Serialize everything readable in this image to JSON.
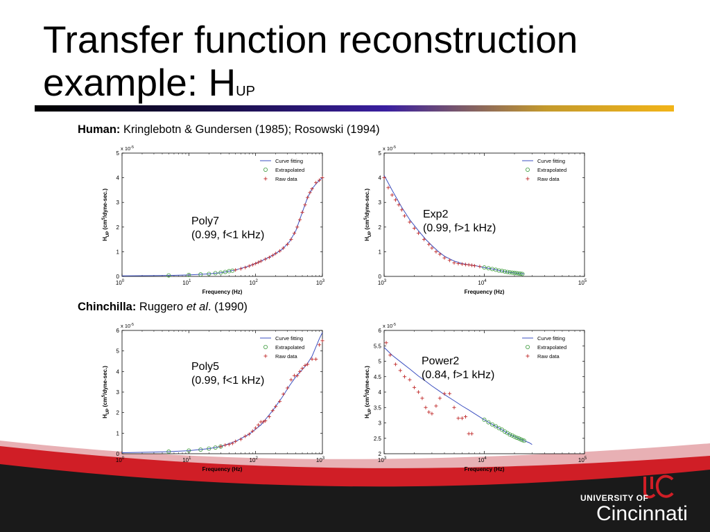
{
  "slide": {
    "title_main": "Transfer function reconstruction example: H",
    "title_sub": "UP",
    "human_caption": {
      "bold": "Human:",
      "rest": " Kringlebotn & Gundersen (1985);  Rosowski (1994)"
    },
    "chinchilla_caption": {
      "bold": "Chinchilla:",
      "pre": " Ruggero ",
      "italic": "et al",
      "post": ". (1990)"
    },
    "logo": {
      "line1": "UNIVERSITY OF",
      "line2": "Cincinnati"
    }
  },
  "colors": {
    "fit": "#3b4fc0",
    "extrap": "#3c9a3c",
    "raw": "#c02a2a",
    "rule_end": "#f2b418",
    "footer": "#d01e26"
  },
  "chart_data": [
    {
      "id": "c1",
      "type": "scatter",
      "xscale": "log",
      "xlim": [
        1,
        1000
      ],
      "ylim": [
        0,
        5
      ],
      "yticks": [
        0,
        1,
        2,
        3,
        4,
        5
      ],
      "xticks": [
        {
          "base": "10",
          "exp": "0",
          "v": 1
        },
        {
          "base": "10",
          "exp": "1",
          "v": 10
        },
        {
          "base": "10",
          "exp": "2",
          "v": 100
        },
        {
          "base": "10",
          "exp": "3",
          "v": 1000
        }
      ],
      "multiplier": {
        "base": "x 10",
        "exp": "-5"
      },
      "xlabel": "Frequency (Hz)",
      "ylabel": {
        "h": "H",
        "sub": "UP",
        "mid": " (cm",
        "sup": "5",
        "end": "/dyne-sec.)"
      },
      "legend": [
        "Curve fitting",
        "Extrapolated",
        "Raw data"
      ],
      "annotation": [
        "Poly7",
        "(0.99, f<1 kHz)"
      ],
      "fit": [
        [
          1,
          0.02
        ],
        [
          3,
          0.03
        ],
        [
          5,
          0.04
        ],
        [
          10,
          0.06
        ],
        [
          20,
          0.1
        ],
        [
          30,
          0.15
        ],
        [
          50,
          0.26
        ],
        [
          80,
          0.42
        ],
        [
          120,
          0.62
        ],
        [
          180,
          0.85
        ],
        [
          250,
          1.1
        ],
        [
          320,
          1.4
        ],
        [
          400,
          1.85
        ],
        [
          500,
          2.6
        ],
        [
          600,
          3.2
        ],
        [
          700,
          3.55
        ],
        [
          800,
          3.75
        ],
        [
          900,
          3.9
        ],
        [
          1000,
          4.0
        ]
      ],
      "extrapolated": [
        [
          5,
          0.04
        ],
        [
          10,
          0.06
        ],
        [
          15,
          0.08
        ],
        [
          20,
          0.1
        ],
        [
          25,
          0.13
        ],
        [
          30,
          0.15
        ],
        [
          35,
          0.18
        ],
        [
          40,
          0.21
        ],
        [
          45,
          0.23
        ]
      ],
      "raw": [
        [
          50,
          0.26
        ],
        [
          60,
          0.31
        ],
        [
          70,
          0.36
        ],
        [
          80,
          0.42
        ],
        [
          90,
          0.47
        ],
        [
          100,
          0.52
        ],
        [
          110,
          0.57
        ],
        [
          120,
          0.62
        ],
        [
          140,
          0.7
        ],
        [
          160,
          0.77
        ],
        [
          180,
          0.85
        ],
        [
          200,
          0.93
        ],
        [
          230,
          1.03
        ],
        [
          260,
          1.15
        ],
        [
          300,
          1.3
        ],
        [
          340,
          1.5
        ],
        [
          380,
          1.75
        ],
        [
          420,
          2.0
        ],
        [
          460,
          2.3
        ],
        [
          500,
          2.6
        ],
        [
          550,
          2.9
        ],
        [
          600,
          3.2
        ],
        [
          650,
          3.4
        ],
        [
          700,
          3.55
        ],
        [
          800,
          3.8
        ],
        [
          900,
          3.9
        ],
        [
          1000,
          4.0
        ]
      ]
    },
    {
      "id": "c2",
      "type": "scatter",
      "xscale": "log",
      "xlim": [
        1000,
        100000
      ],
      "ylim": [
        0,
        5
      ],
      "yticks": [
        0,
        1,
        2,
        3,
        4,
        5
      ],
      "xticks": [
        {
          "base": "10",
          "exp": "3",
          "v": 1000
        },
        {
          "base": "10",
          "exp": "4",
          "v": 10000
        },
        {
          "base": "10",
          "exp": "5",
          "v": 100000
        }
      ],
      "multiplier": {
        "base": "x 10",
        "exp": "-5"
      },
      "xlabel": "Frequency (Hz)",
      "ylabel": {
        "h": "H",
        "sub": "UP",
        "mid": " (cm",
        "sup": "5",
        "end": "/dyne-sec.)"
      },
      "legend": [
        "Curve fitting",
        "Extrapolated",
        "Raw data"
      ],
      "annotation": [
        "Exp2",
        "(0.99, f>1 kHz)"
      ],
      "fit": [
        [
          1000,
          4.1
        ],
        [
          1200,
          3.5
        ],
        [
          1500,
          2.8
        ],
        [
          1800,
          2.3
        ],
        [
          2200,
          1.85
        ],
        [
          2600,
          1.5
        ],
        [
          3000,
          1.25
        ],
        [
          3500,
          1.0
        ],
        [
          4000,
          0.82
        ],
        [
          5000,
          0.62
        ],
        [
          6000,
          0.52
        ],
        [
          7000,
          0.47
        ],
        [
          8000,
          0.44
        ],
        [
          10000,
          0.36
        ],
        [
          12000,
          0.3
        ],
        [
          15000,
          0.22
        ],
        [
          18000,
          0.16
        ],
        [
          22000,
          0.12
        ],
        [
          25000,
          0.1
        ]
      ],
      "extrapolated": [
        [
          10000,
          0.36
        ],
        [
          11000,
          0.33
        ],
        [
          12000,
          0.3
        ],
        [
          13000,
          0.27
        ],
        [
          14000,
          0.24
        ],
        [
          15000,
          0.22
        ],
        [
          16000,
          0.2
        ],
        [
          17000,
          0.18
        ],
        [
          18000,
          0.16
        ],
        [
          19000,
          0.15
        ],
        [
          20000,
          0.14
        ],
        [
          21000,
          0.13
        ],
        [
          22000,
          0.12
        ],
        [
          23000,
          0.11
        ],
        [
          24000,
          0.1
        ]
      ],
      "raw": [
        [
          1000,
          4.0
        ],
        [
          1100,
          3.6
        ],
        [
          1200,
          3.3
        ],
        [
          1300,
          3.1
        ],
        [
          1400,
          2.9
        ],
        [
          1500,
          2.7
        ],
        [
          1600,
          2.45
        ],
        [
          1800,
          2.2
        ],
        [
          2000,
          1.95
        ],
        [
          2200,
          1.75
        ],
        [
          2500,
          1.5
        ],
        [
          2800,
          1.3
        ],
        [
          3000,
          1.15
        ],
        [
          3300,
          1.0
        ],
        [
          3600,
          0.9
        ],
        [
          4000,
          0.75
        ],
        [
          4500,
          0.65
        ],
        [
          5000,
          0.55
        ],
        [
          5500,
          0.52
        ],
        [
          6000,
          0.5
        ],
        [
          6500,
          0.48
        ],
        [
          7000,
          0.47
        ],
        [
          7500,
          0.45
        ],
        [
          8000,
          0.43
        ],
        [
          9000,
          0.4
        ]
      ]
    },
    {
      "id": "c3",
      "type": "scatter",
      "xscale": "log",
      "xlim": [
        1,
        1000
      ],
      "ylim": [
        0,
        6
      ],
      "yticks": [
        0,
        1,
        2,
        3,
        4,
        5,
        6
      ],
      "xticks": [
        {
          "base": "10",
          "exp": "0",
          "v": 1
        },
        {
          "base": "10",
          "exp": "1",
          "v": 10
        },
        {
          "base": "10",
          "exp": "2",
          "v": 100
        },
        {
          "base": "10",
          "exp": "3",
          "v": 1000
        }
      ],
      "multiplier": {
        "base": "x 10",
        "exp": "-5"
      },
      "xlabel": "Frequency (Hz)",
      "ylabel": {
        "h": "H",
        "sub": "UP",
        "mid": " (cm",
        "sup": "5",
        "end": "/dyne-sec.)"
      },
      "legend": [
        "Curve fitting",
        "Extrapolated",
        "Raw data"
      ],
      "annotation": [
        "Poly5",
        "(0.99, f<1 kHz)"
      ],
      "fit": [
        [
          1,
          0.05
        ],
        [
          3,
          0.08
        ],
        [
          5,
          0.1
        ],
        [
          10,
          0.15
        ],
        [
          20,
          0.25
        ],
        [
          30,
          0.35
        ],
        [
          50,
          0.6
        ],
        [
          80,
          0.95
        ],
        [
          120,
          1.4
        ],
        [
          180,
          2.1
        ],
        [
          250,
          2.75
        ],
        [
          320,
          3.3
        ],
        [
          400,
          3.75
        ],
        [
          500,
          4.1
        ],
        [
          600,
          4.4
        ],
        [
          700,
          4.75
        ],
        [
          800,
          5.2
        ],
        [
          900,
          5.6
        ],
        [
          1000,
          5.9
        ]
      ],
      "extrapolated": [
        [
          5,
          0.1
        ],
        [
          10,
          0.15
        ],
        [
          15,
          0.2
        ],
        [
          20,
          0.25
        ],
        [
          25,
          0.3
        ],
        [
          30,
          0.35
        ]
      ],
      "raw": [
        [
          30,
          0.35
        ],
        [
          35,
          0.42
        ],
        [
          40,
          0.45
        ],
        [
          45,
          0.5
        ],
        [
          50,
          0.6
        ],
        [
          60,
          0.7
        ],
        [
          70,
          0.85
        ],
        [
          80,
          0.95
        ],
        [
          90,
          1.1
        ],
        [
          100,
          1.25
        ],
        [
          110,
          1.4
        ],
        [
          120,
          1.55
        ],
        [
          130,
          1.55
        ],
        [
          140,
          1.6
        ],
        [
          160,
          1.8
        ],
        [
          180,
          2.1
        ],
        [
          200,
          2.3
        ],
        [
          230,
          2.55
        ],
        [
          260,
          2.9
        ],
        [
          300,
          3.2
        ],
        [
          340,
          3.6
        ],
        [
          380,
          3.8
        ],
        [
          420,
          3.8
        ],
        [
          460,
          4.0
        ],
        [
          500,
          4.15
        ],
        [
          550,
          4.3
        ],
        [
          600,
          4.35
        ],
        [
          700,
          4.6
        ],
        [
          800,
          4.6
        ],
        [
          900,
          5.3
        ],
        [
          1000,
          5.5
        ]
      ]
    },
    {
      "id": "c4",
      "type": "scatter",
      "xscale": "log",
      "xlim": [
        1000,
        100000
      ],
      "ylim": [
        2,
        6
      ],
      "yticks": [
        2,
        2.5,
        3,
        3.5,
        4,
        4.5,
        5,
        5.5,
        6
      ],
      "xticks": [
        {
          "base": "10",
          "exp": "3",
          "v": 1000
        },
        {
          "base": "10",
          "exp": "4",
          "v": 10000
        },
        {
          "base": "10",
          "exp": "5",
          "v": 100000
        }
      ],
      "multiplier": {
        "base": "x 10",
        "exp": "-5"
      },
      "xlabel": "Frequency (Hz)",
      "ylabel": {
        "h": "H",
        "sub": "UP",
        "mid": " (cm",
        "sup": "5",
        "end": "/dyne-sec.)"
      },
      "legend": [
        "Curve fitting",
        "Extrapolated",
        "Raw data"
      ],
      "annotation": [
        "Power2",
        "(0.84, f>1 kHz)"
      ],
      "fit": [
        [
          1000,
          5.45
        ],
        [
          1200,
          5.2
        ],
        [
          1500,
          4.95
        ],
        [
          1800,
          4.75
        ],
        [
          2200,
          4.52
        ],
        [
          2600,
          4.35
        ],
        [
          3000,
          4.2
        ],
        [
          3500,
          4.05
        ],
        [
          4000,
          3.92
        ],
        [
          5000,
          3.72
        ],
        [
          6000,
          3.55
        ],
        [
          7000,
          3.42
        ],
        [
          8000,
          3.3
        ],
        [
          10000,
          3.1
        ],
        [
          12000,
          2.95
        ],
        [
          15000,
          2.78
        ],
        [
          18000,
          2.62
        ],
        [
          22000,
          2.5
        ],
        [
          25000,
          2.42
        ],
        [
          28000,
          2.36
        ],
        [
          30000,
          2.3
        ]
      ],
      "extrapolated": [
        [
          10000,
          3.1
        ],
        [
          11000,
          3.02
        ],
        [
          12000,
          2.95
        ],
        [
          13000,
          2.89
        ],
        [
          14000,
          2.83
        ],
        [
          15000,
          2.78
        ],
        [
          16000,
          2.72
        ],
        [
          17000,
          2.67
        ],
        [
          18000,
          2.62
        ],
        [
          19000,
          2.59
        ],
        [
          20000,
          2.55
        ],
        [
          21000,
          2.52
        ],
        [
          22000,
          2.5
        ],
        [
          23000,
          2.47
        ],
        [
          24000,
          2.44
        ],
        [
          25000,
          2.42
        ]
      ],
      "raw": [
        [
          1050,
          5.6
        ],
        [
          1150,
          5.2
        ],
        [
          1300,
          4.9
        ],
        [
          1450,
          4.7
        ],
        [
          1600,
          4.5
        ],
        [
          1800,
          4.4
        ],
        [
          2000,
          4.15
        ],
        [
          2200,
          4.0
        ],
        [
          2400,
          3.8
        ],
        [
          2600,
          3.5
        ],
        [
          2800,
          3.35
        ],
        [
          3000,
          3.3
        ],
        [
          3300,
          3.55
        ],
        [
          3600,
          3.8
        ],
        [
          4000,
          3.95
        ],
        [
          4500,
          3.95
        ],
        [
          5000,
          3.5
        ],
        [
          5500,
          3.15
        ],
        [
          6000,
          3.15
        ],
        [
          6500,
          3.2
        ],
        [
          7000,
          2.65
        ],
        [
          7500,
          2.65
        ]
      ]
    }
  ]
}
